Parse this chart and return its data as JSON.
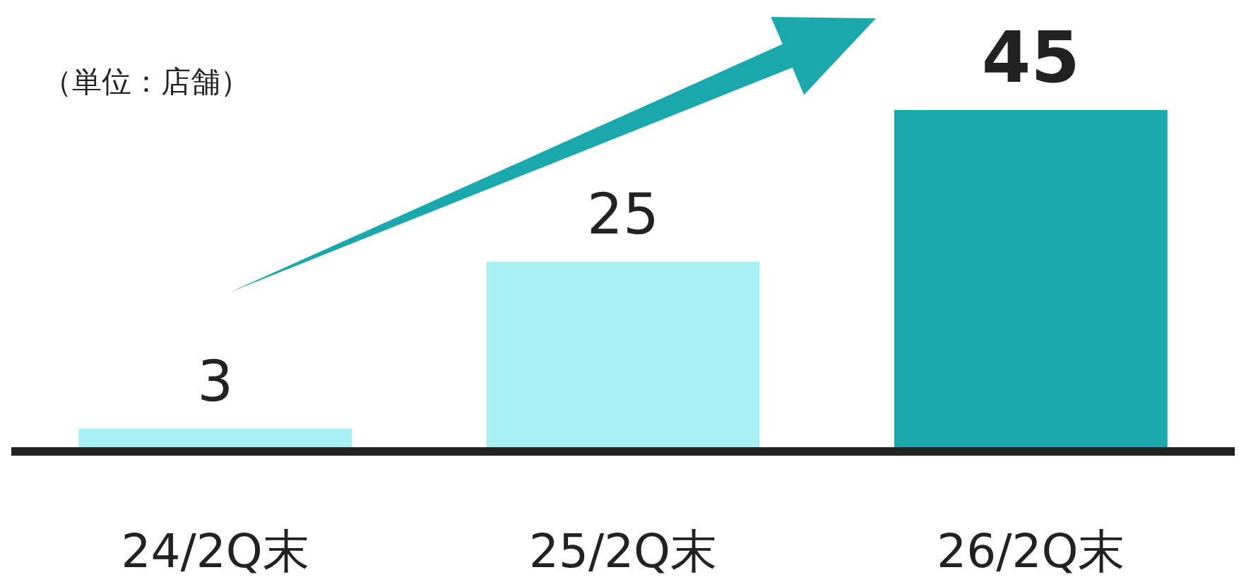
{
  "chart_data": {
    "type": "bar",
    "categories": [
      "24/2Q末",
      "25/2Q末",
      "26/2Q末"
    ],
    "values": [
      3,
      25,
      45
    ],
    "colors": [
      "#a8eef2",
      "#a8eef2",
      "#1aa8ac"
    ],
    "data_labels": true,
    "annotations": [
      "（単位：店舗）"
    ]
  }
}
